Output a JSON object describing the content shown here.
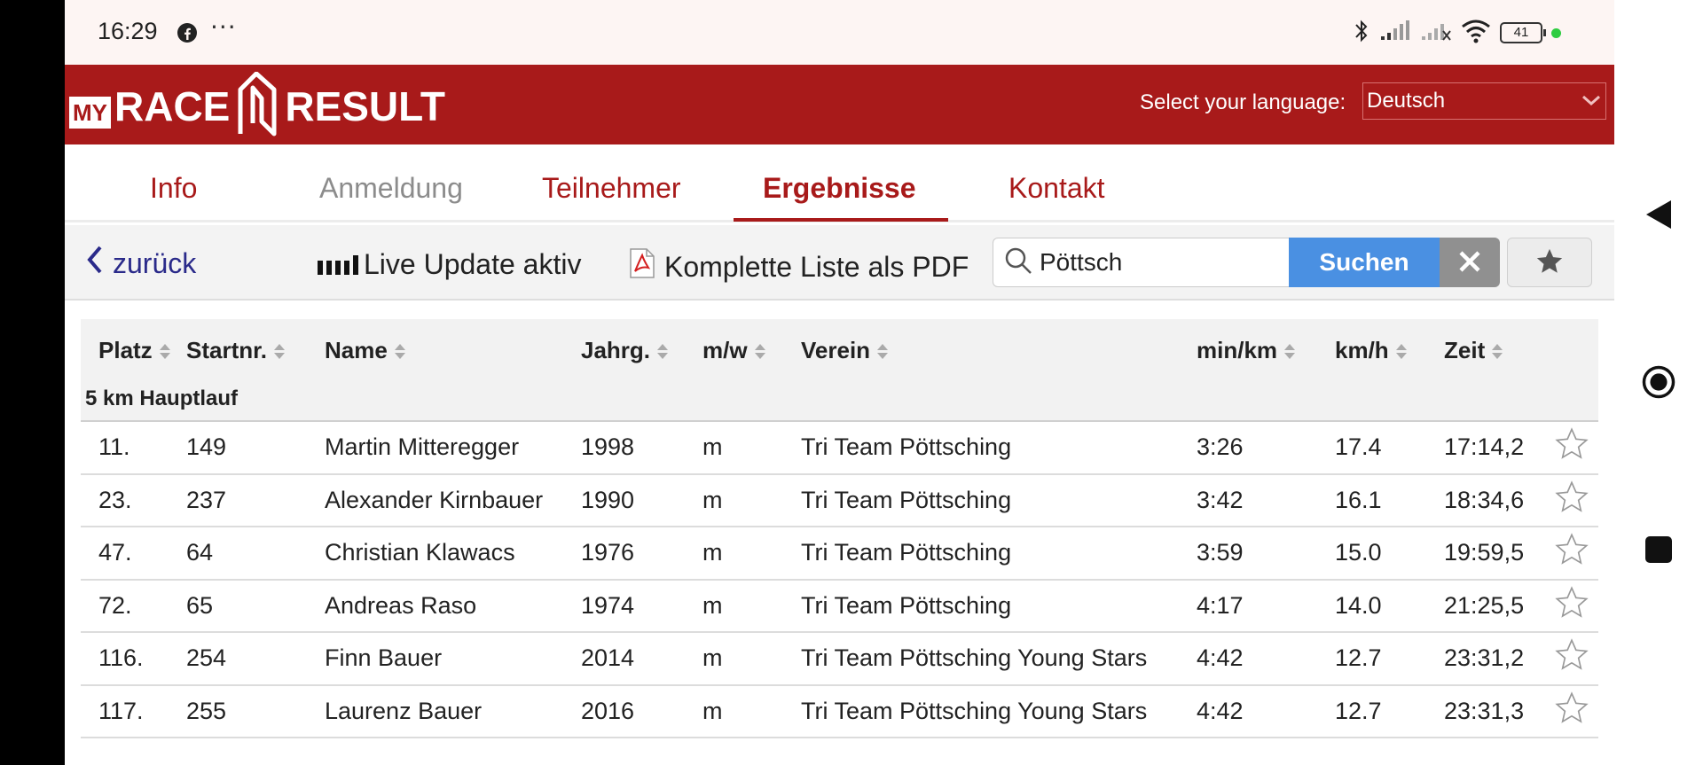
{
  "statusbar": {
    "time": "16:29",
    "dots": "···",
    "battery": "41",
    "icons": [
      "facebook-icon",
      "bluetooth-icon",
      "signal-icon",
      "signal-off-icon",
      "wifi-icon",
      "battery-icon"
    ]
  },
  "header": {
    "logo_my": "MY",
    "logo_race": "RACE",
    "logo_result": "RESULT",
    "lang_label": "Select your language:",
    "lang_value": "Deutsch",
    "brand_color": "#a81a1a"
  },
  "tabs": [
    {
      "label": "Info",
      "state": "normal"
    },
    {
      "label": "Anmeldung",
      "state": "disabled"
    },
    {
      "label": "Teilnehmer",
      "state": "normal"
    },
    {
      "label": "Ergebnisse",
      "state": "active"
    },
    {
      "label": "Kontakt",
      "state": "normal"
    }
  ],
  "toolbar": {
    "back_label": "zurück",
    "live_label": "Live Update aktiv",
    "pdf_label": "Komplette Liste als PDF",
    "search_value": "Pöttsch",
    "search_button": "Suchen",
    "search_button_color": "#4a90e2"
  },
  "table": {
    "columns": [
      "Platz",
      "Startnr.",
      "Name",
      "Jahrg.",
      "m/w",
      "Verein",
      "min/km",
      "km/h",
      "Zeit"
    ],
    "group": "5 km Hauptlauf",
    "rows": [
      {
        "platz": "11.",
        "startnr": "149",
        "name": "Martin Mitteregger",
        "jahrg": "1998",
        "mw": "m",
        "verein": "Tri Team Pöttsching",
        "minkm": "3:26",
        "kmh": "17.4",
        "zeit": "17:14,2"
      },
      {
        "platz": "23.",
        "startnr": "237",
        "name": "Alexander Kirnbauer",
        "jahrg": "1990",
        "mw": "m",
        "verein": "Tri Team Pöttsching",
        "minkm": "3:42",
        "kmh": "16.1",
        "zeit": "18:34,6"
      },
      {
        "platz": "47.",
        "startnr": "64",
        "name": "Christian Klawacs",
        "jahrg": "1976",
        "mw": "m",
        "verein": "Tri Team Pöttsching",
        "minkm": "3:59",
        "kmh": "15.0",
        "zeit": "19:59,5"
      },
      {
        "platz": "72.",
        "startnr": "65",
        "name": "Andreas Raso",
        "jahrg": "1974",
        "mw": "m",
        "verein": "Tri Team Pöttsching",
        "minkm": "4:17",
        "kmh": "14.0",
        "zeit": "21:25,5"
      },
      {
        "platz": "116.",
        "startnr": "254",
        "name": "Finn Bauer",
        "jahrg": "2014",
        "mw": "m",
        "verein": "Tri Team Pöttsching Young Stars",
        "minkm": "4:42",
        "kmh": "12.7",
        "zeit": "23:31,2"
      },
      {
        "platz": "117.",
        "startnr": "255",
        "name": "Laurenz Bauer",
        "jahrg": "2016",
        "mw": "m",
        "verein": "Tri Team Pöttsching Young Stars",
        "minkm": "4:42",
        "kmh": "12.7",
        "zeit": "23:31,3"
      }
    ]
  },
  "android_nav": [
    "back-icon",
    "home-icon",
    "recents-icon"
  ]
}
